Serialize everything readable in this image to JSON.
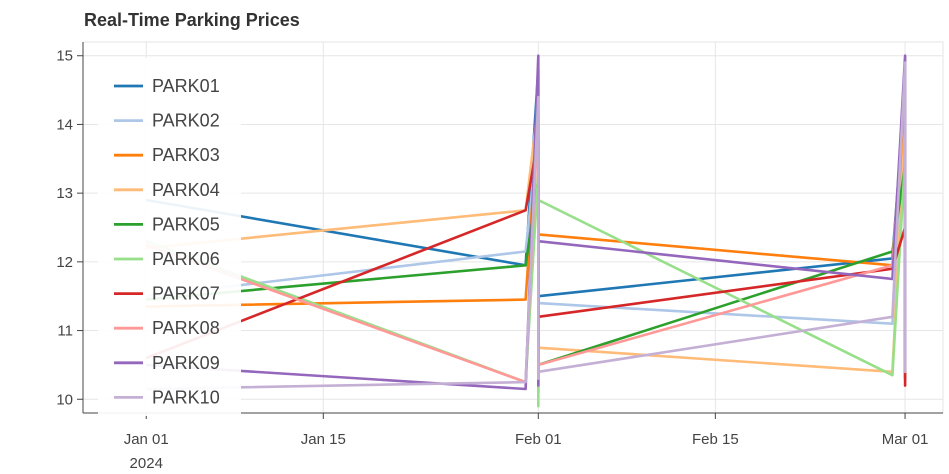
{
  "chart_data": {
    "type": "line",
    "title": "Real-Time Parking Prices",
    "xlabel": "",
    "ylabel": "",
    "ylim": [
      9.8,
      15.2
    ],
    "xlim": [
      "2023-12-27",
      "2024-03-04"
    ],
    "grid": true,
    "legend_position": "top-left",
    "y_ticks": [
      10,
      11,
      12,
      13,
      14,
      15
    ],
    "x_ticks": [
      {
        "date": "2024-01-01",
        "label": "Jan 01",
        "sublabel": "2024"
      },
      {
        "date": "2024-01-15",
        "label": "Jan 15",
        "sublabel": ""
      },
      {
        "date": "2024-02-01",
        "label": "Feb 01",
        "sublabel": ""
      },
      {
        "date": "2024-02-15",
        "label": "Feb 15",
        "sublabel": ""
      },
      {
        "date": "2024-03-01",
        "label": "Mar 01",
        "sublabel": ""
      }
    ],
    "series": [
      {
        "name": "PARK01",
        "color": "#1f77b4",
        "points": [
          [
            "2024-01-01",
            12.9
          ],
          [
            "2024-01-31",
            11.95
          ],
          [
            "2024-02-01",
            14.8
          ],
          [
            "2024-02-01",
            10.1
          ],
          [
            "2024-02-01",
            11.5
          ],
          [
            "2024-02-29",
            12.05
          ],
          [
            "2024-03-01",
            14.5
          ],
          [
            "2024-03-01",
            10.3
          ],
          [
            "2024-03-01",
            11.9
          ]
        ]
      },
      {
        "name": "PARK02",
        "color": "#aec7e8",
        "points": [
          [
            "2024-01-01",
            11.5
          ],
          [
            "2024-01-31",
            12.15
          ],
          [
            "2024-02-01",
            13.9
          ],
          [
            "2024-02-01",
            10.3
          ],
          [
            "2024-02-01",
            11.4
          ],
          [
            "2024-02-29",
            11.1
          ],
          [
            "2024-03-01",
            14.6
          ],
          [
            "2024-03-01",
            10.5
          ],
          [
            "2024-03-01",
            11.2
          ]
        ]
      },
      {
        "name": "PARK03",
        "color": "#ff7f0e",
        "points": [
          [
            "2024-01-01",
            11.35
          ],
          [
            "2024-01-31",
            11.45
          ],
          [
            "2024-02-01",
            14.1
          ],
          [
            "2024-02-01",
            10.7
          ],
          [
            "2024-02-01",
            12.4
          ],
          [
            "2024-02-29",
            11.95
          ],
          [
            "2024-03-01",
            14.2
          ],
          [
            "2024-03-01",
            10.4
          ],
          [
            "2024-03-01",
            11.9
          ]
        ]
      },
      {
        "name": "PARK04",
        "color": "#ffbb78",
        "points": [
          [
            "2024-01-01",
            12.2
          ],
          [
            "2024-01-31",
            12.75
          ],
          [
            "2024-02-01",
            14.3
          ],
          [
            "2024-02-01",
            10.2
          ],
          [
            "2024-02-01",
            10.75
          ],
          [
            "2024-02-29",
            10.4
          ],
          [
            "2024-03-01",
            14.0
          ],
          [
            "2024-03-01",
            10.4
          ],
          [
            "2024-03-01",
            10.6
          ]
        ]
      },
      {
        "name": "PARK05",
        "color": "#2ca02c",
        "points": [
          [
            "2024-01-01",
            11.45
          ],
          [
            "2024-01-31",
            11.95
          ],
          [
            "2024-02-01",
            13.2
          ],
          [
            "2024-02-01",
            10.35
          ],
          [
            "2024-02-01",
            10.5
          ],
          [
            "2024-02-29",
            12.15
          ],
          [
            "2024-03-01",
            13.4
          ],
          [
            "2024-03-01",
            10.5
          ],
          [
            "2024-03-01",
            12.2
          ]
        ]
      },
      {
        "name": "PARK06",
        "color": "#98df8a",
        "points": [
          [
            "2024-01-01",
            12.3
          ],
          [
            "2024-01-31",
            10.25
          ],
          [
            "2024-02-01",
            13.3
          ],
          [
            "2024-02-01",
            9.9
          ],
          [
            "2024-02-01",
            12.9
          ],
          [
            "2024-02-29",
            10.35
          ],
          [
            "2024-03-01",
            13.5
          ],
          [
            "2024-03-01",
            10.35
          ],
          [
            "2024-03-01",
            10.4
          ]
        ]
      },
      {
        "name": "PARK07",
        "color": "#d62728",
        "points": [
          [
            "2024-01-01",
            10.6
          ],
          [
            "2024-01-31",
            12.75
          ],
          [
            "2024-02-01",
            13.8
          ],
          [
            "2024-02-01",
            10.3
          ],
          [
            "2024-02-01",
            11.2
          ],
          [
            "2024-02-29",
            11.9
          ],
          [
            "2024-03-01",
            12.5
          ],
          [
            "2024-03-01",
            10.2
          ],
          [
            "2024-03-01",
            10.5
          ]
        ]
      },
      {
        "name": "PARK08",
        "color": "#ff9896",
        "points": [
          [
            "2024-01-01",
            12.25
          ],
          [
            "2024-01-31",
            10.25
          ],
          [
            "2024-02-01",
            14.2
          ],
          [
            "2024-02-01",
            10.4
          ],
          [
            "2024-02-01",
            10.5
          ],
          [
            "2024-02-29",
            11.95
          ],
          [
            "2024-03-01",
            14.6
          ],
          [
            "2024-03-01",
            10.5
          ],
          [
            "2024-03-01",
            11.6
          ]
        ]
      },
      {
        "name": "PARK09",
        "color": "#9467bd",
        "points": [
          [
            "2024-01-01",
            10.5
          ],
          [
            "2024-01-31",
            10.15
          ],
          [
            "2024-02-01",
            15.0
          ],
          [
            "2024-02-01",
            10.2
          ],
          [
            "2024-02-01",
            12.3
          ],
          [
            "2024-02-29",
            11.75
          ],
          [
            "2024-03-01",
            15.0
          ],
          [
            "2024-03-01",
            10.6
          ],
          [
            "2024-03-01",
            12.5
          ]
        ]
      },
      {
        "name": "PARK10",
        "color": "#c5b0d5",
        "points": [
          [
            "2024-01-01",
            10.15
          ],
          [
            "2024-01-31",
            10.25
          ],
          [
            "2024-02-01",
            14.4
          ],
          [
            "2024-02-01",
            10.3
          ],
          [
            "2024-02-01",
            10.4
          ],
          [
            "2024-02-29",
            11.2
          ],
          [
            "2024-03-01",
            14.9
          ],
          [
            "2024-03-01",
            10.4
          ],
          [
            "2024-03-01",
            11.0
          ]
        ]
      }
    ]
  }
}
